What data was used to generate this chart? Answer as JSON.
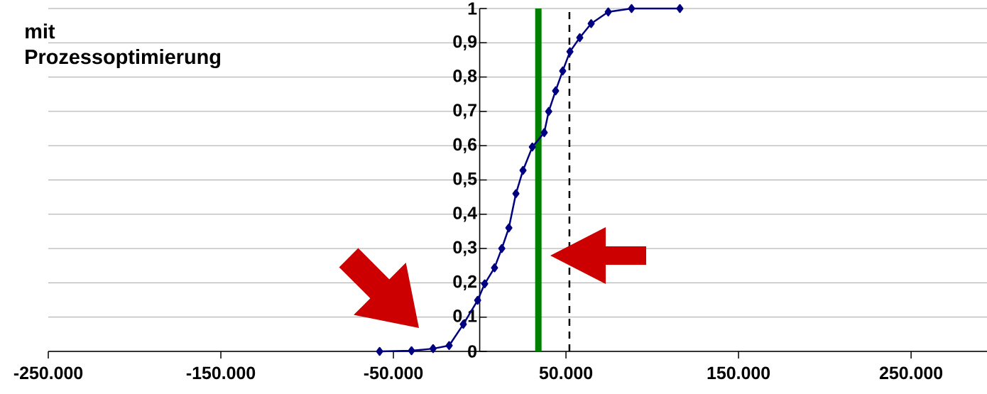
{
  "chart_data": {
    "type": "line",
    "title": "mit Prozessoptimierung",
    "x": [
      -58000,
      -39500,
      -27000,
      -17700,
      -9500,
      -1200,
      2900,
      8600,
      12800,
      16900,
      21000,
      25100,
      30500,
      37400,
      40000,
      44000,
      48100,
      52300,
      58000,
      64600,
      74500,
      88000,
      116000
    ],
    "series": [
      {
        "color": "#000080",
        "values": [
          0,
          0.002,
          0.008,
          0.017,
          0.079,
          0.149,
          0.197,
          0.244,
          0.3,
          0.36,
          0.46,
          0.528,
          0.596,
          0.638,
          0.7,
          0.76,
          0.818,
          0.874,
          0.915,
          0.956,
          0.99,
          1,
          1
        ]
      }
    ],
    "xlim": [
      -250000,
      294000
    ],
    "xticks": [
      {
        "value": -250000,
        "label": "-250.000"
      },
      {
        "value": -150000,
        "label": "-150.000"
      },
      {
        "value": -50000,
        "label": "-50.000"
      },
      {
        "value": 50000,
        "label": "50.000"
      },
      {
        "value": 150000,
        "label": "150.000"
      },
      {
        "value": 250000,
        "label": "250.000"
      }
    ],
    "ylim": [
      0,
      1
    ],
    "yticks": [
      0,
      {
        "value": 0.1,
        "label": "0,1"
      },
      {
        "value": 0.2,
        "label": "0,2"
      },
      {
        "value": 0.3,
        "label": "0,3"
      },
      {
        "value": 0.4,
        "label": "0,4"
      },
      {
        "value": 0.5,
        "label": "0,5"
      },
      {
        "value": 0.6,
        "label": "0,6"
      },
      {
        "value": 0.7,
        "label": "0,7"
      },
      {
        "value": 0.8,
        "label": "0,8"
      },
      {
        "value": 0.9,
        "label": "0,9"
      },
      1
    ],
    "ref_lines": [
      {
        "axis": "x",
        "value": 34000,
        "color": "#008000",
        "line_style": "solid"
      },
      {
        "axis": "x",
        "value": 52000,
        "color": "#000000",
        "line_style": "dashed"
      }
    ],
    "grid": "y",
    "marker": "diamond",
    "line_style": "solid"
  }
}
